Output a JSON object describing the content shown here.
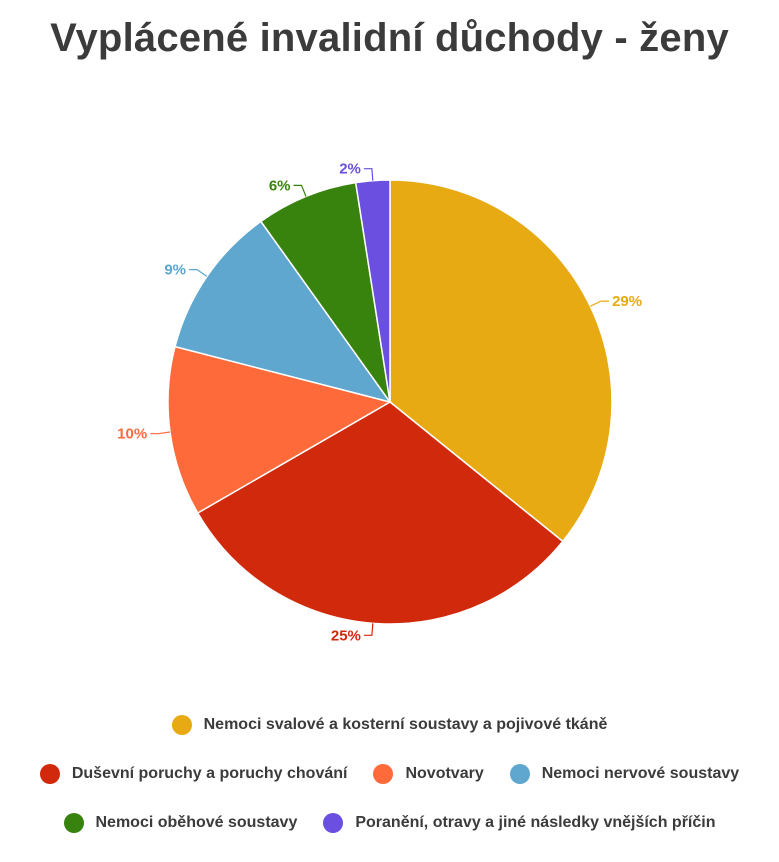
{
  "chart_data": {
    "type": "pie",
    "title": "Vyplácené invalidní důchody - ženy",
    "slices": [
      {
        "name": "Nemoci svalové a kosterní soustavy a pojivové tkáně",
        "value": 29,
        "label": "29%",
        "color": "#E8AA12"
      },
      {
        "name": "Duševní poruchy a poruchy chování",
        "value": 25,
        "label": "25%",
        "color": "#D1290C"
      },
      {
        "name": "Novotvary",
        "value": 10,
        "label": "10%",
        "color": "#FF6A3A"
      },
      {
        "name": "Nemoci nervové soustavy",
        "value": 9,
        "label": "9%",
        "color": "#5FA7CE"
      },
      {
        "name": "Nemoci oběhové soustavy",
        "value": 6,
        "label": "6%",
        "color": "#37830E"
      },
      {
        "name": "Poranění, otravy a jiné následky vnějších příčin",
        "value": 2,
        "label": "2%",
        "color": "#6A4FE0"
      }
    ],
    "legend_placement": "bottom"
  }
}
